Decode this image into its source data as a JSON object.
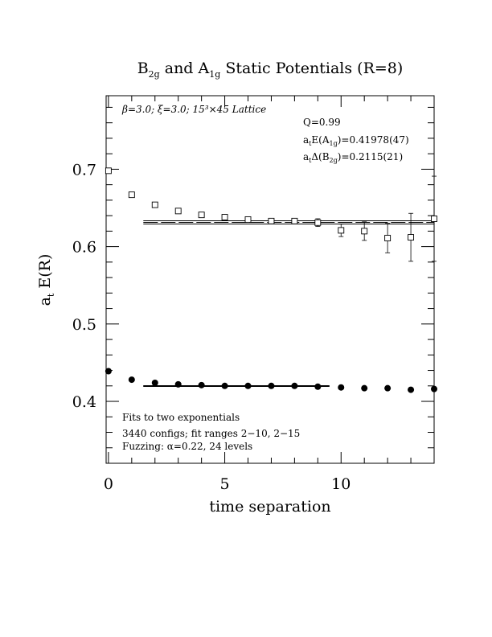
{
  "chart_data": {
    "type": "scatter",
    "title": {
      "part1": "B",
      "sub1": "2g",
      "part2": " and A",
      "sub2": "1g",
      "part3": " Static Potentials (R=8)"
    },
    "xlabel": "time separation",
    "ylabel": {
      "base": "a",
      "sub": "t",
      "rest": " E(R)"
    },
    "xlim": [
      -0.1,
      14
    ],
    "ylim": [
      0.32,
      0.795
    ],
    "x_ticks": [
      0,
      5,
      10
    ],
    "y_ticks": [
      0.4,
      0.5,
      0.6,
      0.7
    ],
    "x_tick_labels": [
      "0",
      "5",
      "10"
    ],
    "y_tick_labels": [
      "0.4",
      "0.5",
      "0.6",
      "0.7"
    ],
    "annotations": {
      "lattice": "β=3.0; ξ=3.0; 15³×45 Lattice",
      "q": "Q=0.99",
      "ea": {
        "base": "a",
        "sub": "t",
        "mid": "E(A",
        "sub2": "1g",
        "end": ")=0.41978(47)"
      },
      "db": {
        "base": "a",
        "sub": "t",
        "mid": "Δ(B",
        "sub2": "2g",
        "end": ")=0.2115(21)"
      },
      "fits": "Fits to two exponentials",
      "configs": "3440 configs; fit ranges 2−10, 2−15",
      "fuzzing": "Fuzzing: α=0.22, 24 levels"
    },
    "series": [
      {
        "marker": "open-square",
        "x": [
          0,
          1,
          2,
          3,
          4,
          5,
          6,
          7,
          8,
          9,
          10,
          11,
          12,
          13,
          14
        ],
        "y": [
          0.698,
          0.667,
          0.654,
          0.646,
          0.641,
          0.638,
          0.635,
          0.633,
          0.633,
          0.631,
          0.621,
          0.62,
          0.611,
          0.612,
          0.636
        ],
        "err": [
          0.003,
          0.002,
          0.002,
          0.002,
          0.002,
          0.002,
          0.002,
          0.002,
          0.003,
          0.005,
          0.008,
          0.012,
          0.019,
          0.031,
          0.055
        ]
      },
      {
        "marker": "filled-circle",
        "x": [
          0,
          1,
          2,
          3,
          4,
          5,
          6,
          7,
          8,
          9,
          10,
          11,
          12,
          13,
          14
        ],
        "y": [
          0.439,
          0.428,
          0.424,
          0.422,
          0.421,
          0.42,
          0.42,
          0.42,
          0.42,
          0.419,
          0.418,
          0.417,
          0.417,
          0.415,
          0.416
        ],
        "err": [
          0.001,
          0.001,
          0.001,
          0.001,
          0.001,
          0.001,
          0.001,
          0.001,
          0.001,
          0.001,
          0.001,
          0.001,
          0.002,
          0.002,
          0.002
        ]
      }
    ],
    "fit_bands": [
      {
        "x_range": [
          1.5,
          14
        ],
        "center": 0.6313,
        "half_width": 0.0021
      },
      {
        "x_range": [
          1.5,
          9.5
        ],
        "center": 0.41978,
        "half_width": 0.00047
      }
    ]
  }
}
